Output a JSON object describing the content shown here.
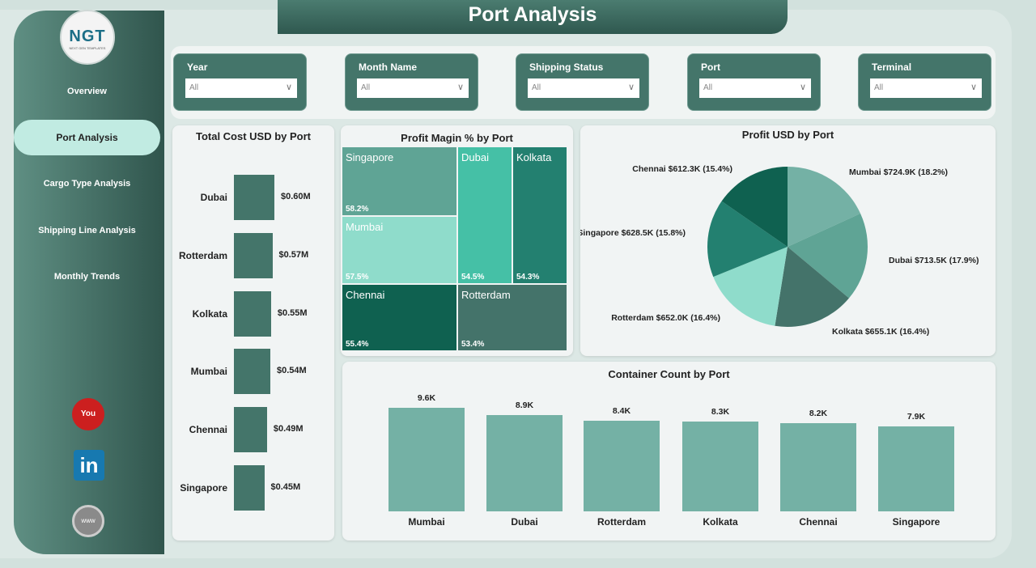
{
  "header": {
    "title": "Port Analysis"
  },
  "logo": {
    "text": "NGT",
    "subtitle": "NEXT GEN TEMPLATES"
  },
  "sidebar": {
    "items": [
      {
        "label": "Overview",
        "active": false
      },
      {
        "label": "Port Analysis",
        "active": true
      },
      {
        "label": "Cargo Type Analysis",
        "active": false
      },
      {
        "label": "Shipping Line Analysis",
        "active": false
      },
      {
        "label": "Monthly Trends",
        "active": false
      }
    ],
    "social": [
      "youtube-icon",
      "linkedin-icon",
      "website-icon"
    ]
  },
  "filters": [
    {
      "label": "Year",
      "value": "All"
    },
    {
      "label": "Month Name",
      "value": "All"
    },
    {
      "label": "Shipping Status",
      "value": "All"
    },
    {
      "label": "Port",
      "value": "All"
    },
    {
      "label": "Terminal",
      "value": "All"
    }
  ],
  "colors": {
    "primary": "#44756a",
    "bar": "#74b1a5",
    "active_nav": "#c1ebe2"
  },
  "chart_data": [
    {
      "type": "bar",
      "orientation": "horizontal",
      "title": "Total Cost USD by Port",
      "categories": [
        "Dubai",
        "Rotterdam",
        "Kolkata",
        "Mumbai",
        "Chennai",
        "Singapore"
      ],
      "values": [
        0.6,
        0.57,
        0.55,
        0.54,
        0.49,
        0.45
      ],
      "labels": [
        "$0.60M",
        "$0.57M",
        "$0.55M",
        "$0.54M",
        "$0.49M",
        "$0.45M"
      ]
    },
    {
      "type": "treemap",
      "title": "Profit Magin % by Port",
      "categories": [
        "Singapore",
        "Mumbai",
        "Chennai",
        "Rotterdam",
        "Dubai",
        "Kolkata"
      ],
      "values": [
        58.2,
        57.5,
        55.4,
        53.4,
        54.5,
        54.3
      ],
      "labels": [
        "58.2%",
        "57.5%",
        "55.4%",
        "53.4%",
        "54.5%",
        "54.3%"
      ],
      "colors": [
        "#5fa495",
        "#8fdccb",
        "#0f6150",
        "#44736a",
        "#45c0a6",
        "#238070"
      ]
    },
    {
      "type": "pie",
      "title": "Profit USD by Port",
      "categories": [
        "Mumbai",
        "Dubai",
        "Kolkata",
        "Rotterdam",
        "Singapore",
        "Chennai"
      ],
      "values": [
        724.9,
        713.5,
        655.1,
        652.0,
        628.5,
        612.3
      ],
      "percents": [
        18.2,
        17.9,
        16.4,
        16.4,
        15.8,
        15.4
      ],
      "labels": [
        "Mumbai $724.9K (18.2%)",
        "Dubai $713.5K (17.9%)",
        "Kolkata $655.1K (16.4%)",
        "Rotterdam $652.0K (16.4%)",
        "Singapore $628.5K (15.8%)",
        "Chennai $612.3K (15.4%)"
      ],
      "colors": [
        "#74b1a5",
        "#5fa495",
        "#44736a",
        "#8fdccb",
        "#238070",
        "#0f6150"
      ]
    },
    {
      "type": "bar",
      "title": "Container Count by Port",
      "categories": [
        "Mumbai",
        "Dubai",
        "Rotterdam",
        "Kolkata",
        "Chennai",
        "Singapore"
      ],
      "values": [
        9.6,
        8.9,
        8.4,
        8.3,
        8.2,
        7.9
      ],
      "labels": [
        "9.6K",
        "8.9K",
        "8.4K",
        "8.3K",
        "8.2K",
        "7.9K"
      ]
    }
  ]
}
